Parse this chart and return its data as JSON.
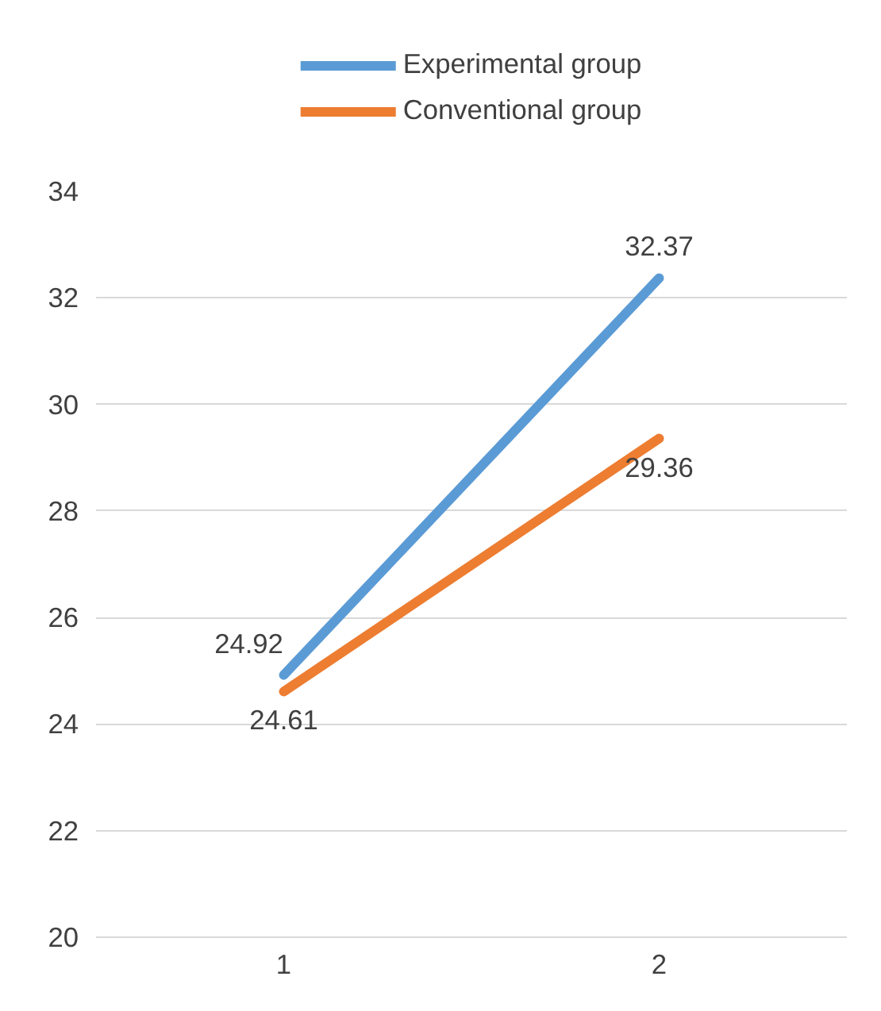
{
  "chart_data": {
    "type": "line",
    "categories": [
      "1",
      "2"
    ],
    "series": [
      {
        "name": "Experimental group",
        "color": "#5b9bd5",
        "values": [
          24.92,
          32.37
        ]
      },
      {
        "name": "Conventional group",
        "color": "#ed7d31",
        "values": [
          24.61,
          29.36
        ]
      }
    ],
    "ylim": [
      20,
      34
    ],
    "yticks": [
      20,
      22,
      24,
      26,
      28,
      30,
      32,
      34
    ],
    "grid": "y",
    "legend": "top",
    "data_labels": true,
    "marker": "none",
    "line_style": "solid"
  }
}
